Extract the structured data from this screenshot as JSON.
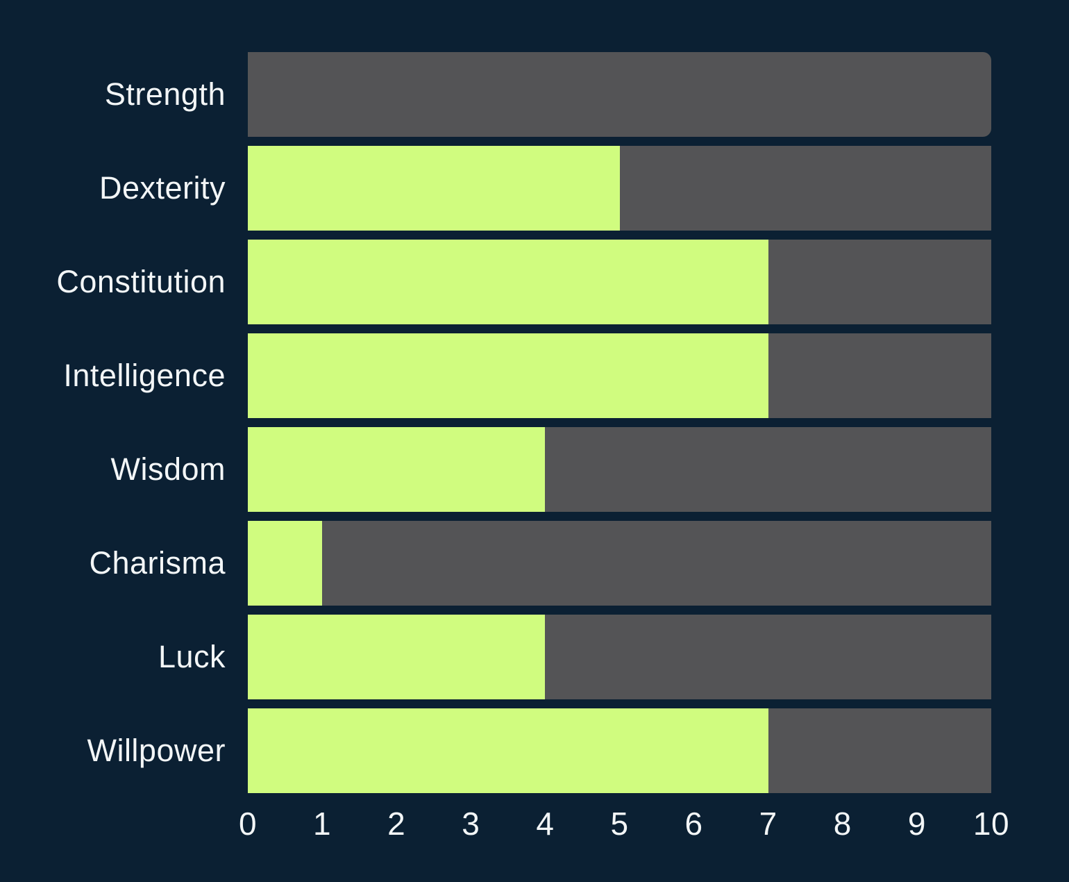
{
  "chart_data": {
    "type": "bar",
    "orientation": "horizontal",
    "title": "",
    "xlabel": "",
    "ylabel": "",
    "categories": [
      "Strength",
      "Dexterity",
      "Constitution",
      "Intelligence",
      "Wisdom",
      "Charisma",
      "Luck",
      "Willpower"
    ],
    "values": [
      0,
      5,
      7,
      7,
      4,
      1,
      4,
      7
    ],
    "track_max": 10,
    "xlim": [
      0,
      10
    ],
    "x_ticks": [
      "0",
      "1",
      "2",
      "3",
      "4",
      "5",
      "6",
      "7",
      "8",
      "9",
      "10"
    ],
    "grid": false,
    "legend": false,
    "rounded_track_rows": [
      0
    ],
    "colors": {
      "background": "#0b2033",
      "track": "#545456",
      "fill": "#d0fc7f",
      "text": "#f3f6f7"
    }
  }
}
